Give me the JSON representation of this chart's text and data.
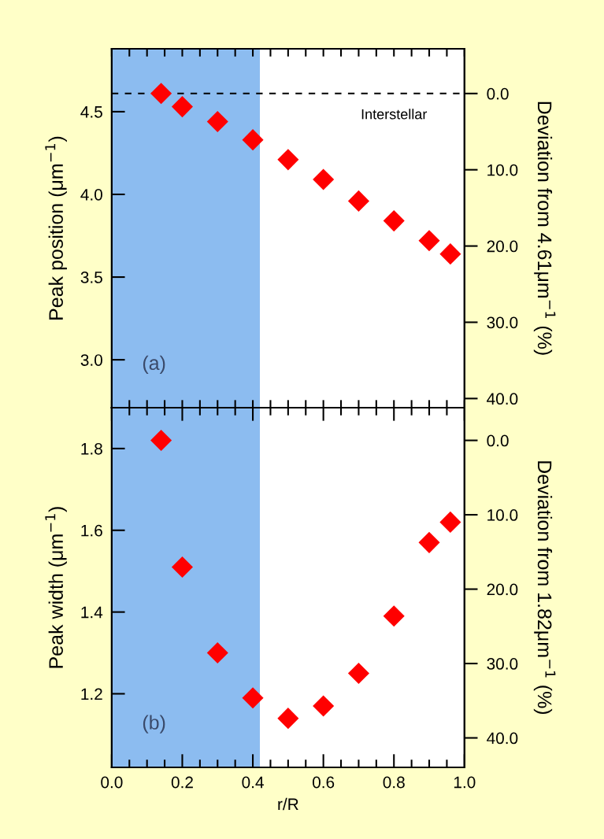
{
  "chart_data": [
    {
      "type": "scatter",
      "ylabel": "Peak position (μm$^{−1}$)",
      "y2label": "Deviation from 4.61μm$^{−1}$ (%)",
      "x": [
        0.14,
        0.2,
        0.3,
        0.4,
        0.5,
        0.6,
        0.7,
        0.8,
        0.9,
        0.96
      ],
      "series": [
        {
          "color": "#ff0000",
          "values": [
            4.61,
            4.53,
            4.44,
            4.33,
            4.21,
            4.09,
            3.96,
            3.84,
            3.72,
            3.64
          ]
        }
      ],
      "marker": "diamond",
      "xlim": [
        0,
        1
      ],
      "xticks": [
        {
          "value": 0,
          "label": null
        },
        {
          "value": 0.05,
          "label": null
        },
        {
          "value": 0.1,
          "label": null
        },
        {
          "value": 0.15,
          "label": null
        },
        {
          "value": 0.2,
          "label": null
        },
        {
          "value": 0.25,
          "label": null
        },
        {
          "value": 0.3,
          "label": null
        },
        {
          "value": 0.35,
          "label": null
        },
        {
          "value": 0.4,
          "label": null
        },
        {
          "value": 0.45,
          "label": null
        },
        {
          "value": 0.5,
          "label": null
        },
        {
          "value": 0.55,
          "label": null
        },
        {
          "value": 0.6,
          "label": null
        },
        {
          "value": 0.65,
          "label": null
        },
        {
          "value": 0.7,
          "label": null
        },
        {
          "value": 0.75,
          "label": null
        },
        {
          "value": 0.8,
          "label": null
        },
        {
          "value": 0.85,
          "label": null
        },
        {
          "value": 0.9,
          "label": null
        },
        {
          "value": 0.95,
          "label": null
        },
        {
          "value": 1,
          "label": null
        }
      ],
      "ylim": [
        2.71,
        4.88
      ],
      "yticks": [
        {
          "value": 3,
          "label": "3.0"
        },
        3.5,
        {
          "value": 4,
          "label": "4.0"
        },
        4.5
      ],
      "y2lim": [
        41.21,
        -5.86
      ],
      "y2ticks": [
        {
          "value": 0,
          "label": "0.0"
        },
        {
          "value": 10,
          "label": "10.0"
        },
        {
          "value": 20,
          "label": "20.0"
        },
        {
          "value": 30,
          "label": "30.0"
        },
        {
          "value": 40,
          "label": "40.0"
        }
      ],
      "tick_labels": "y",
      "ref_lines": [
        {
          "axis": "y",
          "value": 4.61,
          "label": "Interstellar",
          "color": "#000000",
          "line_style": "dashed"
        }
      ],
      "bands": [
        {
          "axis": "x",
          "from": 0,
          "to": 0.42,
          "color": "#8cbcf0"
        }
      ],
      "annotations": [
        "(a)"
      ]
    },
    {
      "type": "scatter",
      "xlabel": "r/R",
      "ylabel": "Peak width (μm$^{−1}$)",
      "y2label": "Deviation from 1.82μm$^{−1}$ (%)",
      "x": [
        0.14,
        0.2,
        0.3,
        0.4,
        0.5,
        0.6,
        0.7,
        0.8,
        0.9,
        0.96
      ],
      "series": [
        {
          "color": "#ff0000",
          "values": [
            1.82,
            1.51,
            1.3,
            1.19,
            1.14,
            1.17,
            1.25,
            1.39,
            1.57,
            1.62
          ]
        }
      ],
      "marker": "diamond",
      "xlim": [
        0,
        1
      ],
      "xticks": [
        {
          "value": 0,
          "label": "0.0"
        },
        {
          "value": 0.05,
          "label": null
        },
        {
          "value": 0.1,
          "label": null
        },
        {
          "value": 0.15,
          "label": null
        },
        {
          "value": 0.2,
          "label": "0.2"
        },
        {
          "value": 0.25,
          "label": null
        },
        {
          "value": 0.3,
          "label": null
        },
        {
          "value": 0.35,
          "label": null
        },
        {
          "value": 0.4,
          "label": "0.4"
        },
        {
          "value": 0.45,
          "label": null
        },
        {
          "value": 0.5,
          "label": null
        },
        {
          "value": 0.55,
          "label": null
        },
        {
          "value": 0.6,
          "label": "0.6"
        },
        {
          "value": 0.65,
          "label": null
        },
        {
          "value": 0.7,
          "label": null
        },
        {
          "value": 0.75,
          "label": null
        },
        {
          "value": 0.8,
          "label": "0.8"
        },
        {
          "value": 0.85,
          "label": null
        },
        {
          "value": 0.9,
          "label": null
        },
        {
          "value": 0.95,
          "label": null
        },
        {
          "value": 1,
          "label": "1.0"
        }
      ],
      "ylim": [
        1.02,
        1.9
      ],
      "yticks": [
        1.2,
        1.4,
        1.6,
        1.8
      ],
      "y2lim": [
        43.96,
        -4.4
      ],
      "y2ticks": [
        {
          "value": 0,
          "label": "0.0"
        },
        {
          "value": 10,
          "label": "10.0"
        },
        {
          "value": 20,
          "label": "20.0"
        },
        {
          "value": 30,
          "label": "30.0"
        },
        {
          "value": 40,
          "label": "40.0"
        }
      ],
      "bands": [
        {
          "axis": "x",
          "from": 0,
          "to": 0.42,
          "color": "#8cbcf0"
        }
      ],
      "annotations": [
        "(b)"
      ]
    }
  ]
}
